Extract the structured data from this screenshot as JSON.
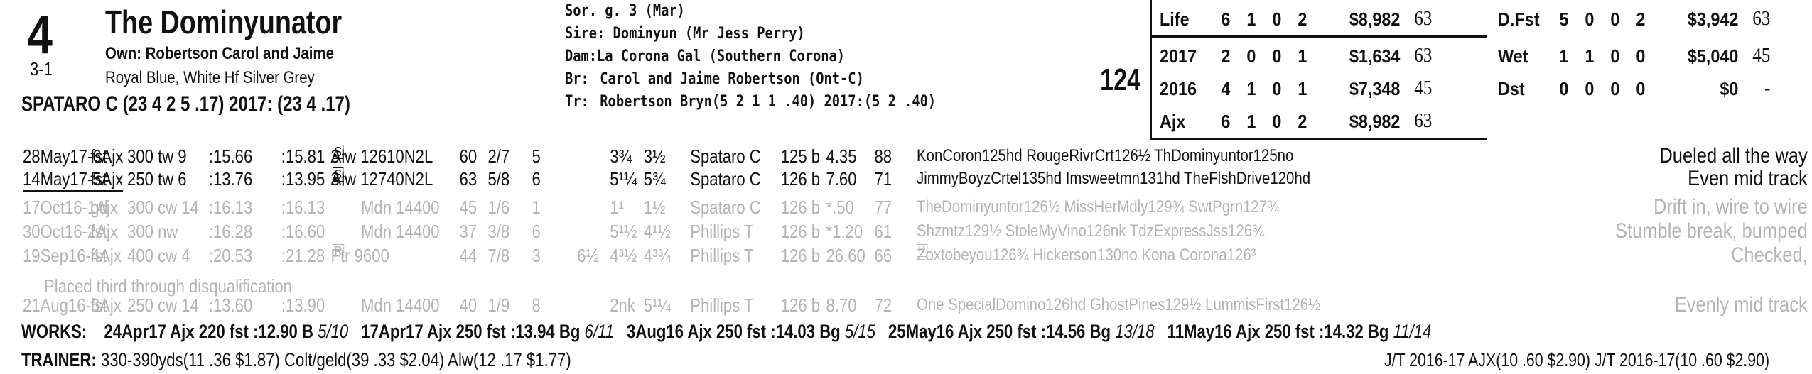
{
  "header": {
    "program_number": "4",
    "horse_name": "The Dominyunator",
    "morning_line": "3-1",
    "owner": "Own: Robertson Carol and Jaime",
    "silks": "Royal Blue, White Hf Silver Grey",
    "jockey": "SPATARO C (23 4 2 5 .17) 2017: (23 4 .17)",
    "speed_figure": "124"
  },
  "pedigree": {
    "sex_age": "Sor. g. 3 (Mar)",
    "sire_label": "Sire:",
    "sire": "Dominyun (Mr Jess Perry)",
    "dam_label": "Dam:",
    "dam": "La Corona Gal (Southern Corona)",
    "breeder_label": "Br:",
    "breeder": "Carol and Jaime Robertson (Ont-C)",
    "trainer_label": "Tr:",
    "trainer": "Robertson Bryn(5 2 1 1 .40)  2017:(5 2 .40)"
  },
  "stats": {
    "left": [
      {
        "label": "Life",
        "starts": "6",
        "w": "1",
        "p": "0",
        "s": "2",
        "earn": "$8,982",
        "fig": "63"
      },
      {
        "label": "2017",
        "starts": "2",
        "w": "0",
        "p": "0",
        "s": "1",
        "earn": "$1,634",
        "fig": "63"
      },
      {
        "label": "2016",
        "starts": "4",
        "w": "1",
        "p": "0",
        "s": "1",
        "earn": "$7,348",
        "fig": "45"
      },
      {
        "label": "Ajx",
        "starts": "6",
        "w": "1",
        "p": "0",
        "s": "2",
        "earn": "$8,982",
        "fig": "63"
      }
    ],
    "right": [
      {
        "label": "D.Fst",
        "starts": "5",
        "w": "0",
        "p": "0",
        "s": "2",
        "earn": "$3,942",
        "fig": "63"
      },
      {
        "label": "Wet",
        "starts": "1",
        "w": "1",
        "p": "0",
        "s": "0",
        "earn": "$5,040",
        "fig": "45"
      },
      {
        "label": "Dst",
        "starts": "0",
        "w": "0",
        "p": "0",
        "s": "0",
        "earn": "$0",
        "fig": "-"
      }
    ]
  },
  "races": [
    {
      "date": "28May17-6Ajx",
      "cond": "fst",
      "dist": "300 tw 9",
      "frac1": ":15.66",
      "frac2": ":15.81",
      "agesex": "3↑",
      "restr": "S",
      "type": "Alw 12610N2L",
      "fig": "60",
      "pp": "2/7",
      "st": "5",
      "c1": "",
      "c2": "3¾",
      "fin": "3½",
      "jockey": "Spataro C",
      "wt": "125 b",
      "odds": "4.35",
      "sp": "88",
      "top": "KonCoron125hd RougeRivrCrt126½ ThDominyuntor125no",
      "comment": "Dueled all the way",
      "faded": false,
      "underline": false
    },
    {
      "date": "14May17-5Ajx",
      "cond": "fst",
      "dist": "250 tw 6",
      "frac1": ":13.76",
      "frac2": ":13.95",
      "agesex": "3↑",
      "restr": "S",
      "type": "Alw 12740N2L",
      "fig": "63",
      "pp": "5/8",
      "st": "6",
      "c1": "",
      "c2": "5¹¼",
      "fin": "5¾",
      "jockey": "Spataro C",
      "wt": "126 b",
      "odds": "7.60",
      "sp": "71",
      "top": "JimmyBoyzCrtel135hd Imsweetmn131hd TheFlshDrive120hd",
      "comment": "Even mid track",
      "faded": false,
      "underline": true
    },
    {
      "date": "17Oct16-1Ajx",
      "cond": "gd",
      "dist": "300 cw 14",
      "frac1": ":16.13",
      "frac2": ":16.13",
      "agesex": "",
      "restr": "",
      "type": "Mdn 14400",
      "fig": "45",
      "pp": "1/6",
      "st": "1",
      "c1": "",
      "c2": "1¹",
      "fin": "1½",
      "jockey": "Spataro C",
      "wt": "126 b",
      "odds": "*.50",
      "sp": "77",
      "top": "TheDominyuntor126½ MissHerMdly129¾ SwtPgrn127¾",
      "comment": "Drift in, wire to wire",
      "faded": true,
      "underline": false
    },
    {
      "date": "30Oct16-2Ajx",
      "cond": "fst",
      "dist": "300 nw",
      "frac1": ":16.28",
      "frac2": ":16.60",
      "agesex": "",
      "restr": "",
      "type": "Mdn 14400",
      "fig": "37",
      "pp": "3/8",
      "st": "6",
      "c1": "",
      "c2": "5¹½",
      "fin": "4¹½",
      "jockey": "Phillips T",
      "wt": "126 b",
      "odds": "*1.20",
      "sp": "61",
      "top": "Shzmtz129½ StoleMyVino126nk TdzExpressJss126¾",
      "comment": "Stumble break, bumped",
      "faded": true,
      "underline": false
    },
    {
      "date": "19Sep16-4Ajx",
      "cond": "fst",
      "dist": "400 cw 4",
      "frac1": ":20.53",
      "frac2": ":21.28",
      "agesex": "",
      "restr": "R",
      "type": "Ftr 9600",
      "fig": "44",
      "pp": "7/8",
      "st": "3",
      "c1": "6½",
      "c2": "4³½",
      "fin": "4³¾",
      "jockey": "Phillips T",
      "wt": "126 b",
      "odds": "26.60",
      "sp": "66",
      "top": "Zoxtobeyou126¾ Hickerson130no Kona Corona126³",
      "comment": "Checked,",
      "faded": true,
      "underline": false,
      "dq": "D"
    },
    {
      "date": "21Aug16-6Ajx",
      "cond": "fst",
      "dist": "250 cw 14",
      "frac1": ":13.60",
      "frac2": ":13.90",
      "agesex": "",
      "restr": "",
      "type": "Mdn 14400",
      "fig": "40",
      "pp": "1/9",
      "st": "8",
      "c1": "",
      "c2": "2nk",
      "fin": "5¹¼",
      "jockey": "Phillips T",
      "wt": "126 b",
      "odds": "8.70",
      "sp": "72",
      "top": "One SpecialDomino126hd GhostPines129½ LummisFirst126½",
      "comment": "Evenly mid track",
      "faded": true,
      "underline": false
    }
  ],
  "dq_note": "Placed third through disqualification",
  "works": {
    "label": "WORKS:",
    "items": [
      {
        "date": "24Apr17",
        "track": "Ajx",
        "dist": "220",
        "cond": "fst",
        "time": ":12.90",
        "grade": "B",
        "rank": "5/10"
      },
      {
        "date": "17Apr17",
        "track": "Ajx",
        "dist": "250",
        "cond": "fst",
        "time": ":13.94",
        "grade": "Bg",
        "rank": "6/11"
      },
      {
        "date": "3Aug16",
        "track": "Ajx",
        "dist": "250",
        "cond": "fst",
        "time": ":14.03",
        "grade": "Bg",
        "rank": "5/15"
      },
      {
        "date": "25May16",
        "track": "Ajx",
        "dist": "250",
        "cond": "fst",
        "time": ":14.56",
        "grade": "Bg",
        "rank": "13/18"
      },
      {
        "date": "11May16",
        "track": "Ajx",
        "dist": "250",
        "cond": "fst",
        "time": ":14.32",
        "grade": "Bg",
        "rank": "11/14"
      }
    ]
  },
  "trainer_line": {
    "label": "TRAINER:",
    "text": "330-390yds(11 .36 $1.87) Colt/geld(39 .33 $2.04) Alw(12 .17 $1.77)",
    "jt": "J/T 2016-17 AJX(10 .60 $2.90)  J/T 2016-17(10 .60 $2.90)"
  }
}
